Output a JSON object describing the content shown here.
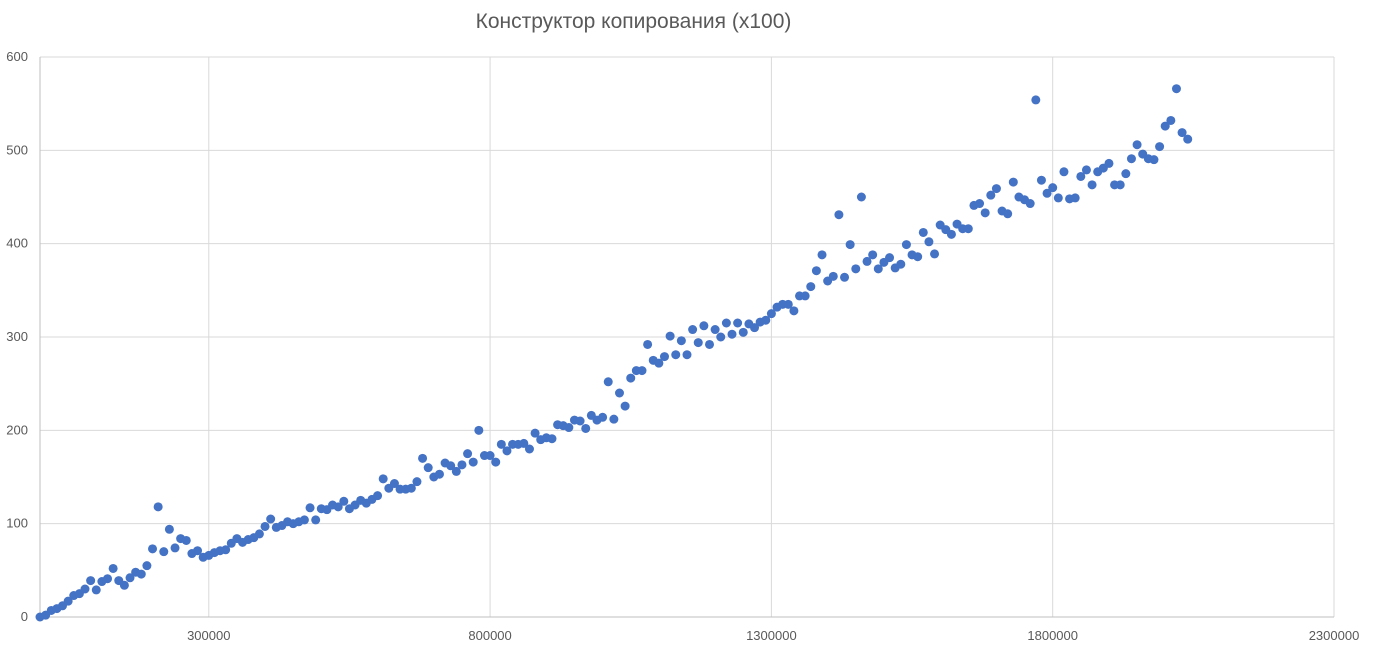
{
  "chart_data": {
    "type": "scatter",
    "title": "Конструктор копирования (x100)",
    "xlabel": "",
    "ylabel": "",
    "xlim": [
      0,
      2300000
    ],
    "ylim": [
      0,
      600
    ],
    "x_ticks": [
      300000,
      800000,
      1300000,
      1800000,
      2300000
    ],
    "x_tick_labels": [
      "300000",
      "800000",
      "1300000",
      "1800000",
      "2300000"
    ],
    "y_ticks": [
      0,
      100,
      200,
      300,
      400,
      500,
      600
    ],
    "y_tick_labels": [
      "0",
      "100",
      "200",
      "300",
      "400",
      "500",
      "600"
    ],
    "grid": true,
    "legend": "none",
    "colors": {
      "point": "#4472C4",
      "grid": "#D9D9D9",
      "axis": "#BFBFBF",
      "text": "#595959"
    },
    "series": [
      {
        "points": [
          [
            0,
            0
          ],
          [
            10000,
            2
          ],
          [
            20000,
            7
          ],
          [
            30000,
            9
          ],
          [
            40000,
            12
          ],
          [
            50000,
            17
          ],
          [
            60000,
            23
          ],
          [
            70000,
            25
          ],
          [
            80000,
            30
          ],
          [
            90000,
            39
          ],
          [
            100000,
            29
          ],
          [
            110000,
            38
          ],
          [
            120000,
            41
          ],
          [
            130000,
            52
          ],
          [
            140000,
            39
          ],
          [
            150000,
            34
          ],
          [
            160000,
            42
          ],
          [
            170000,
            48
          ],
          [
            180000,
            46
          ],
          [
            190000,
            55
          ],
          [
            200000,
            73
          ],
          [
            210000,
            118
          ],
          [
            220000,
            70
          ],
          [
            230000,
            94
          ],
          [
            240000,
            74
          ],
          [
            250000,
            84
          ],
          [
            260000,
            82
          ],
          [
            270000,
            68
          ],
          [
            280000,
            71
          ],
          [
            290000,
            64
          ],
          [
            300000,
            66
          ],
          [
            310000,
            69
          ],
          [
            320000,
            71
          ],
          [
            330000,
            72
          ],
          [
            340000,
            79
          ],
          [
            350000,
            84
          ],
          [
            360000,
            80
          ],
          [
            370000,
            83
          ],
          [
            380000,
            85
          ],
          [
            390000,
            89
          ],
          [
            400000,
            97
          ],
          [
            410000,
            105
          ],
          [
            420000,
            96
          ],
          [
            430000,
            98
          ],
          [
            440000,
            102
          ],
          [
            450000,
            100
          ],
          [
            460000,
            102
          ],
          [
            470000,
            104
          ],
          [
            480000,
            117
          ],
          [
            490000,
            104
          ],
          [
            500000,
            116
          ],
          [
            510000,
            115
          ],
          [
            520000,
            120
          ],
          [
            530000,
            118
          ],
          [
            540000,
            124
          ],
          [
            550000,
            116
          ],
          [
            560000,
            120
          ],
          [
            570000,
            125
          ],
          [
            580000,
            122
          ],
          [
            590000,
            126
          ],
          [
            600000,
            130
          ],
          [
            610000,
            148
          ],
          [
            620000,
            138
          ],
          [
            630000,
            143
          ],
          [
            640000,
            137
          ],
          [
            650000,
            137
          ],
          [
            660000,
            138
          ],
          [
            670000,
            145
          ],
          [
            680000,
            170
          ],
          [
            690000,
            160
          ],
          [
            700000,
            150
          ],
          [
            710000,
            153
          ],
          [
            720000,
            165
          ],
          [
            730000,
            162
          ],
          [
            740000,
            156
          ],
          [
            750000,
            163
          ],
          [
            760000,
            175
          ],
          [
            770000,
            166
          ],
          [
            780000,
            200
          ],
          [
            790000,
            173
          ],
          [
            800000,
            173
          ],
          [
            810000,
            166
          ],
          [
            820000,
            185
          ],
          [
            830000,
            178
          ],
          [
            840000,
            185
          ],
          [
            850000,
            185
          ],
          [
            860000,
            186
          ],
          [
            870000,
            180
          ],
          [
            880000,
            197
          ],
          [
            890000,
            190
          ],
          [
            900000,
            192
          ],
          [
            910000,
            191
          ],
          [
            920000,
            206
          ],
          [
            930000,
            205
          ],
          [
            940000,
            203
          ],
          [
            950000,
            211
          ],
          [
            960000,
            210
          ],
          [
            970000,
            202
          ],
          [
            980000,
            216
          ],
          [
            990000,
            211
          ],
          [
            1000000,
            214
          ],
          [
            1010000,
            252
          ],
          [
            1020000,
            212
          ],
          [
            1030000,
            240
          ],
          [
            1040000,
            226
          ],
          [
            1050000,
            256
          ],
          [
            1060000,
            264
          ],
          [
            1070000,
            264
          ],
          [
            1080000,
            292
          ],
          [
            1090000,
            275
          ],
          [
            1100000,
            272
          ],
          [
            1110000,
            279
          ],
          [
            1120000,
            301
          ],
          [
            1130000,
            281
          ],
          [
            1140000,
            296
          ],
          [
            1150000,
            281
          ],
          [
            1160000,
            308
          ],
          [
            1170000,
            294
          ],
          [
            1180000,
            312
          ],
          [
            1190000,
            292
          ],
          [
            1200000,
            308
          ],
          [
            1210000,
            300
          ],
          [
            1220000,
            315
          ],
          [
            1230000,
            303
          ],
          [
            1240000,
            315
          ],
          [
            1250000,
            305
          ],
          [
            1260000,
            314
          ],
          [
            1270000,
            310
          ],
          [
            1280000,
            316
          ],
          [
            1290000,
            318
          ],
          [
            1300000,
            325
          ],
          [
            1310000,
            332
          ],
          [
            1320000,
            335
          ],
          [
            1330000,
            335
          ],
          [
            1340000,
            328
          ],
          [
            1350000,
            344
          ],
          [
            1360000,
            344
          ],
          [
            1370000,
            354
          ],
          [
            1380000,
            371
          ],
          [
            1390000,
            388
          ],
          [
            1400000,
            360
          ],
          [
            1410000,
            365
          ],
          [
            1420000,
            431
          ],
          [
            1430000,
            364
          ],
          [
            1440000,
            399
          ],
          [
            1450000,
            373
          ],
          [
            1460000,
            450
          ],
          [
            1470000,
            381
          ],
          [
            1480000,
            388
          ],
          [
            1490000,
            373
          ],
          [
            1500000,
            380
          ],
          [
            1510000,
            385
          ],
          [
            1520000,
            374
          ],
          [
            1530000,
            378
          ],
          [
            1540000,
            399
          ],
          [
            1550000,
            388
          ],
          [
            1560000,
            386
          ],
          [
            1570000,
            412
          ],
          [
            1580000,
            402
          ],
          [
            1590000,
            389
          ],
          [
            1600000,
            420
          ],
          [
            1610000,
            415
          ],
          [
            1620000,
            410
          ],
          [
            1630000,
            421
          ],
          [
            1640000,
            416
          ],
          [
            1650000,
            416
          ],
          [
            1660000,
            441
          ],
          [
            1670000,
            443
          ],
          [
            1680000,
            433
          ],
          [
            1690000,
            452
          ],
          [
            1700000,
            459
          ],
          [
            1710000,
            435
          ],
          [
            1720000,
            432
          ],
          [
            1730000,
            466
          ],
          [
            1740000,
            450
          ],
          [
            1750000,
            447
          ],
          [
            1760000,
            443
          ],
          [
            1770000,
            554
          ],
          [
            1780000,
            468
          ],
          [
            1790000,
            454
          ],
          [
            1800000,
            460
          ],
          [
            1810000,
            449
          ],
          [
            1820000,
            477
          ],
          [
            1830000,
            448
          ],
          [
            1840000,
            449
          ],
          [
            1850000,
            472
          ],
          [
            1860000,
            479
          ],
          [
            1870000,
            463
          ],
          [
            1880000,
            477
          ],
          [
            1890000,
            481
          ],
          [
            1900000,
            486
          ],
          [
            1910000,
            463
          ],
          [
            1920000,
            463
          ],
          [
            1930000,
            475
          ],
          [
            1940000,
            491
          ],
          [
            1950000,
            506
          ],
          [
            1960000,
            496
          ],
          [
            1970000,
            491
          ],
          [
            1980000,
            490
          ],
          [
            1990000,
            504
          ],
          [
            2000000,
            526
          ],
          [
            2010000,
            532
          ],
          [
            2020000,
            566
          ],
          [
            2030000,
            519
          ],
          [
            2040000,
            512
          ]
        ]
      }
    ]
  }
}
